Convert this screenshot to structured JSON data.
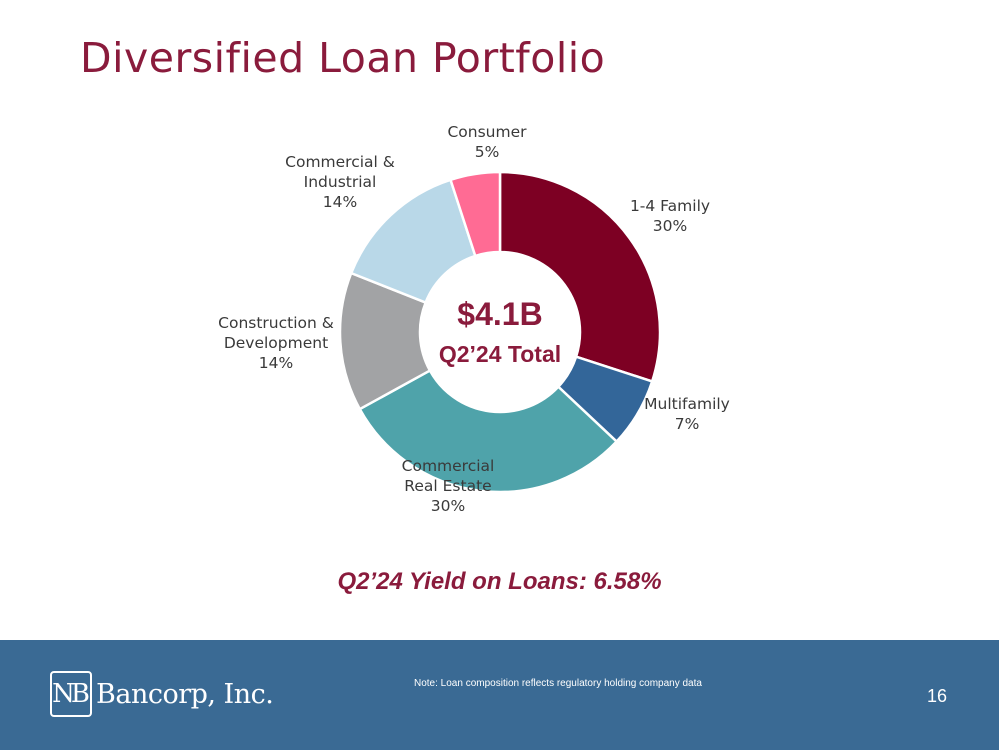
{
  "title": "Diversified Loan Portfolio",
  "chart_data": {
    "type": "pie",
    "style": "donut",
    "slices": [
      {
        "label": [
          "1-4 Family"
        ],
        "pct_label": "30%",
        "value": 30,
        "color": "#7d0023"
      },
      {
        "label": [
          "Multifamily"
        ],
        "pct_label": "7%",
        "value": 7,
        "color": "#336699"
      },
      {
        "label": [
          "Commercial",
          "Real Estate"
        ],
        "pct_label": "30%",
        "value": 30,
        "color": "#4fa3aa"
      },
      {
        "label": [
          "Construction &",
          "Development"
        ],
        "pct_label": "14%",
        "value": 14,
        "color": "#a2a3a5"
      },
      {
        "label": [
          "Commercial &",
          "Industrial"
        ],
        "pct_label": "14%",
        "value": 14,
        "color": "#b9d8e8"
      },
      {
        "label": [
          "Consumer"
        ],
        "pct_label": "5%",
        "value": 5,
        "color": "#ff6b94"
      }
    ],
    "center": {
      "total": "$4.1B",
      "subtitle": "Q2’24 Total"
    }
  },
  "yield_text": "Q2’24 Yield on Loans: 6.58%",
  "footer": {
    "logo_mark": "NB",
    "logo_text": "Bancorp, Inc.",
    "note": "Note: Loan composition reflects regulatory holding company data",
    "page_number": "16",
    "background": "#3a6a94"
  }
}
